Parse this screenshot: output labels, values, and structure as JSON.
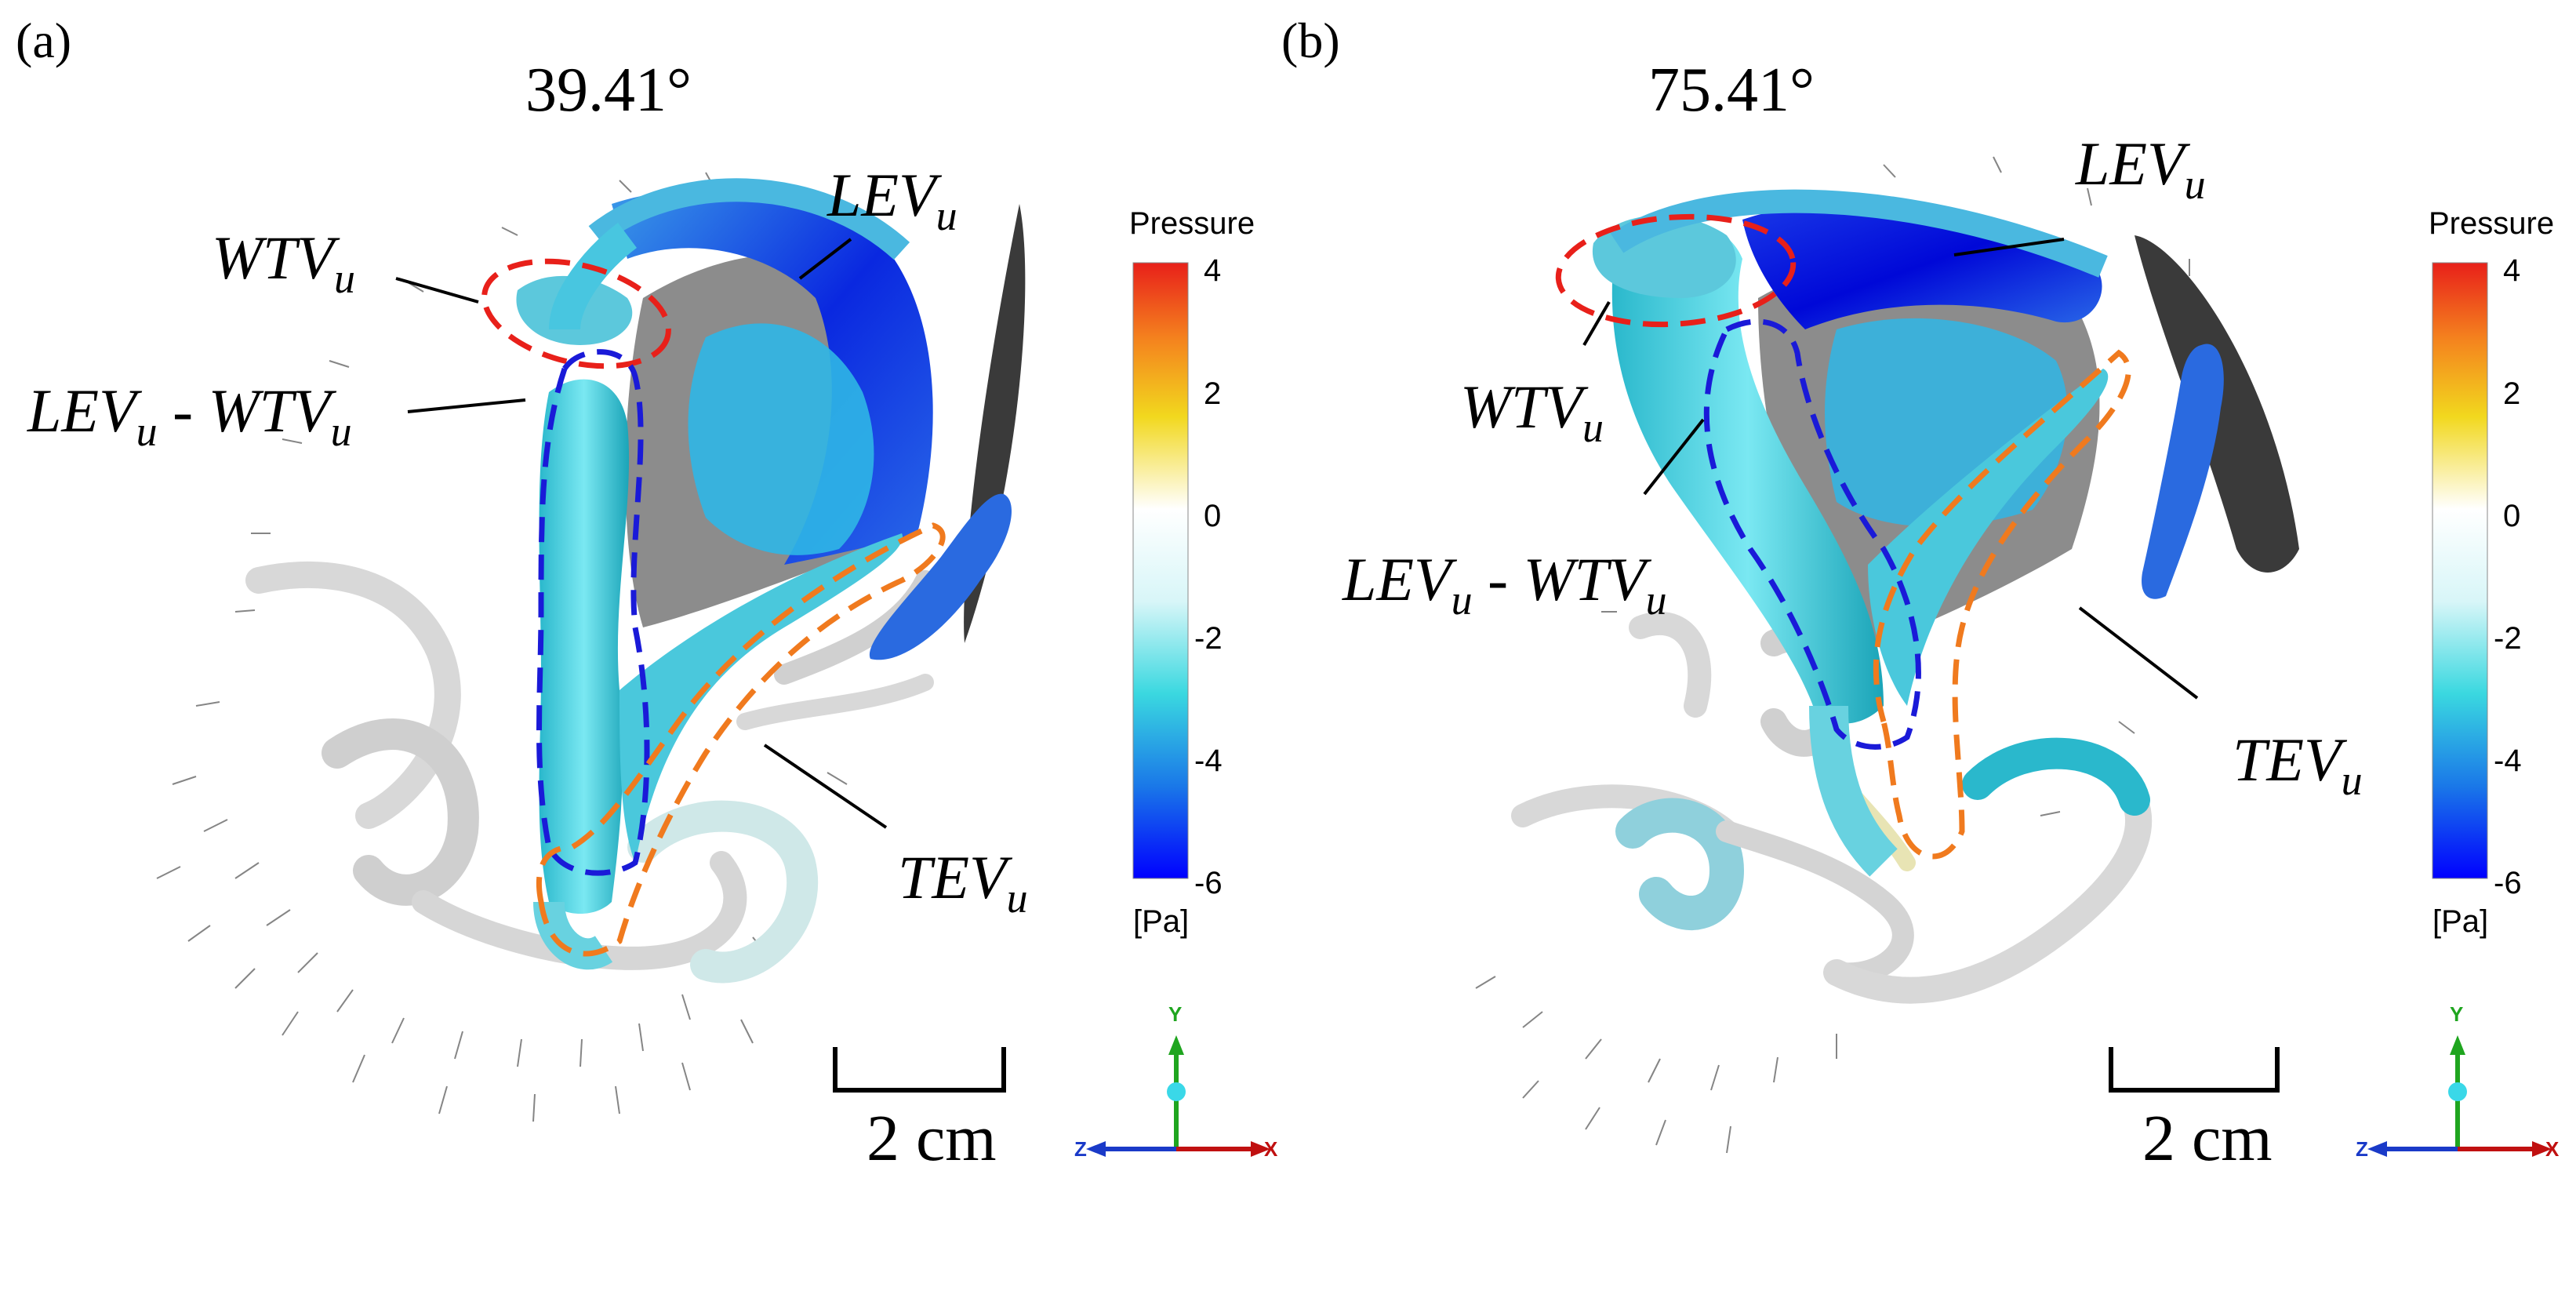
{
  "colors": {
    "pressure_high": "#e8201a",
    "pressure_zero": "#ffffff",
    "pressure_low": "#0000ff",
    "wtv_outline": "#e8201a",
    "lev_wtv_outline": "#1a1ad8",
    "tev_outline": "#f07a1e",
    "wing": "#3a3a3a",
    "axis_y": "#1fa51f",
    "axis_x": "#c01010",
    "axis_z": "#1a3ac8"
  },
  "colorbar": {
    "title": "Pressure",
    "unit": "[Pa]",
    "ticks": [
      "4",
      "2",
      "0",
      "-2",
      "-4",
      "-6"
    ],
    "range": [
      -6,
      4
    ]
  },
  "panels": [
    {
      "letter": "(a)",
      "angle": "39.41°",
      "labels": {
        "wtv": {
          "main": "WTV",
          "sub": "u"
        },
        "lev": {
          "main": "LEV",
          "sub": "u"
        },
        "lev_wtv": {
          "main1": "LEV",
          "sub1": "u",
          "dash": " - ",
          "main2": "WTV",
          "sub2": "u"
        },
        "tev": {
          "main": "TEV",
          "sub": "u"
        }
      },
      "scale_bar": "2 cm",
      "axes": {
        "y": "Y",
        "x": "X",
        "z": "Z"
      }
    },
    {
      "letter": "(b)",
      "angle": "75.41°",
      "labels": {
        "wtv": {
          "main": "WTV",
          "sub": "u"
        },
        "lev": {
          "main": "LEV",
          "sub": "u"
        },
        "lev_wtv": {
          "main1": "LEV",
          "sub1": "u",
          "dash": " - ",
          "main2": "WTV",
          "sub2": "u"
        },
        "tev": {
          "main": "TEV",
          "sub": "u"
        }
      },
      "scale_bar": "2 cm",
      "axes": {
        "y": "Y",
        "x": "X",
        "z": "Z"
      }
    }
  ]
}
